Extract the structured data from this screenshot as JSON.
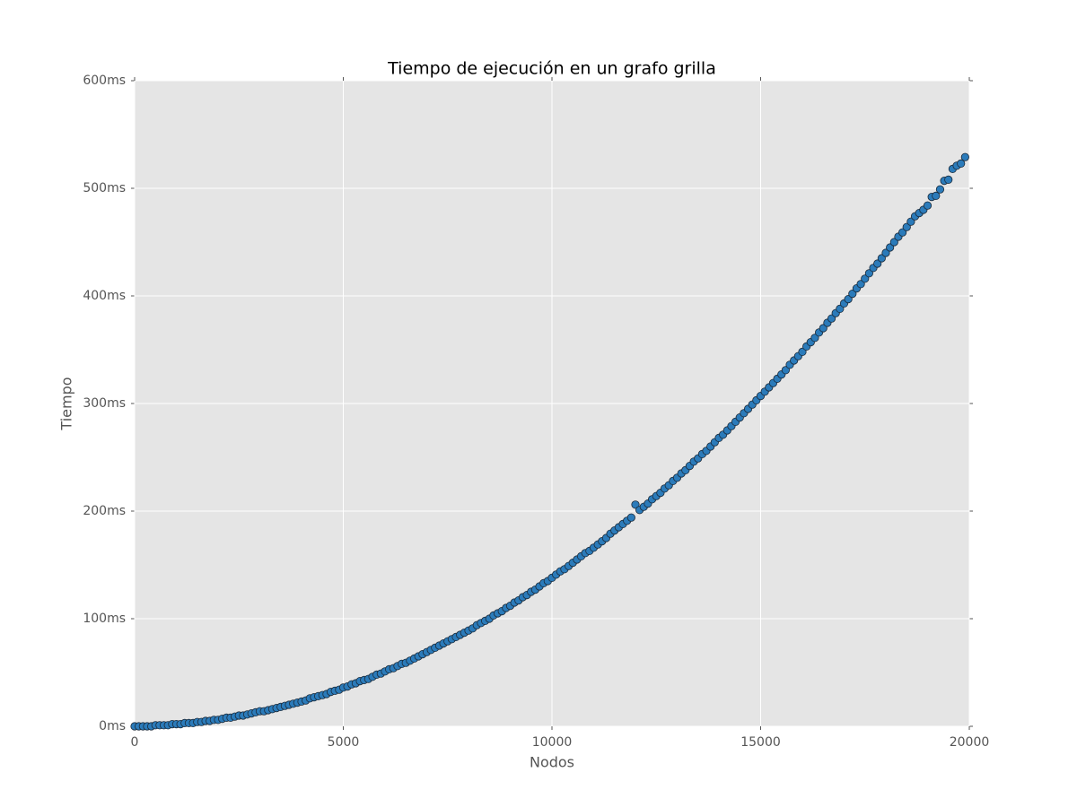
{
  "chart_data": {
    "type": "scatter",
    "title": "Tiempo de ejecución en un grafo grilla",
    "x_label": "Nodos",
    "y_label": "Tiempo",
    "x": [
      0,
      100,
      200,
      300,
      400,
      500,
      600,
      700,
      800,
      900,
      1000,
      1100,
      1200,
      1300,
      1400,
      1500,
      1600,
      1700,
      1800,
      1900,
      2000,
      2100,
      2200,
      2300,
      2400,
      2500,
      2600,
      2700,
      2800,
      2900,
      3000,
      3100,
      3200,
      3300,
      3400,
      3500,
      3600,
      3700,
      3800,
      3900,
      4000,
      4100,
      4200,
      4300,
      4400,
      4500,
      4600,
      4700,
      4800,
      4900,
      5000,
      5100,
      5200,
      5300,
      5400,
      5500,
      5600,
      5700,
      5800,
      5900,
      6000,
      6100,
      6200,
      6300,
      6400,
      6500,
      6600,
      6700,
      6800,
      6900,
      7000,
      7100,
      7200,
      7300,
      7400,
      7500,
      7600,
      7700,
      7800,
      7900,
      8000,
      8100,
      8200,
      8300,
      8400,
      8500,
      8600,
      8700,
      8800,
      8900,
      9000,
      9100,
      9200,
      9300,
      9400,
      9500,
      9600,
      9700,
      9800,
      9900,
      10000,
      10100,
      10200,
      10300,
      10400,
      10500,
      10600,
      10700,
      10800,
      10900,
      11000,
      11100,
      11200,
      11300,
      11400,
      11500,
      11600,
      11700,
      11800,
      11900,
      12000,
      12100,
      12200,
      12300,
      12400,
      12500,
      12600,
      12700,
      12800,
      12900,
      13000,
      13100,
      13200,
      13300,
      13400,
      13500,
      13600,
      13700,
      13800,
      13900,
      14000,
      14100,
      14200,
      14300,
      14400,
      14500,
      14600,
      14700,
      14800,
      14900,
      15000,
      15100,
      15200,
      15300,
      15400,
      15500,
      15600,
      15700,
      15800,
      15900,
      16000,
      16100,
      16200,
      16300,
      16400,
      16500,
      16600,
      16700,
      16800,
      16900,
      17000,
      17100,
      17200,
      17300,
      17400,
      17500,
      17600,
      17700,
      17800,
      17900,
      18000,
      18100,
      18200,
      18300,
      18400,
      18500,
      18600,
      18700,
      18800,
      18900,
      19000,
      19100,
      19200,
      19300,
      19400,
      19500,
      19600,
      19700,
      19800,
      19900
    ],
    "series": [
      {
        "color": "#2b7bba",
        "values": [
          0,
          0,
          0,
          0,
          0,
          1,
          1,
          1,
          1,
          2,
          2,
          2,
          3,
          3,
          3,
          4,
          4,
          5,
          5,
          6,
          6,
          7,
          8,
          8,
          9,
          10,
          10,
          11,
          12,
          13,
          14,
          14,
          15,
          16,
          17,
          18,
          19,
          20,
          21,
          22,
          23,
          24,
          26,
          27,
          28,
          29,
          30,
          32,
          33,
          34,
          36,
          37,
          39,
          40,
          42,
          43,
          44,
          46,
          48,
          49,
          51,
          53,
          54,
          56,
          58,
          59,
          61,
          63,
          65,
          67,
          69,
          71,
          73,
          75,
          77,
          79,
          81,
          83,
          85,
          87,
          89,
          91,
          94,
          96,
          98,
          100,
          103,
          105,
          107,
          110,
          112,
          115,
          117,
          120,
          122,
          125,
          127,
          130,
          133,
          135,
          138,
          141,
          144,
          146,
          149,
          152,
          155,
          158,
          161,
          163,
          166,
          169,
          172,
          175,
          179,
          182,
          185,
          188,
          191,
          194,
          206,
          201,
          204,
          207,
          211,
          214,
          217,
          221,
          224,
          228,
          231,
          235,
          238,
          242,
          246,
          249,
          253,
          256,
          260,
          264,
          268,
          271,
          275,
          279,
          283,
          287,
          291,
          295,
          299,
          303,
          307,
          311,
          315,
          319,
          323,
          327,
          331,
          336,
          340,
          344,
          348,
          353,
          357,
          361,
          366,
          370,
          375,
          379,
          384,
          388,
          393,
          397,
          402,
          407,
          411,
          416,
          421,
          426,
          430,
          435,
          440,
          445,
          450,
          455,
          459,
          464,
          469,
          474,
          477,
          480,
          484,
          492,
          493,
          499,
          507,
          508,
          518,
          521,
          523,
          529
        ]
      }
    ],
    "xlim": [
      0,
      20000
    ],
    "ylim": [
      0,
      600
    ],
    "xticks": [
      0,
      5000,
      10000,
      15000,
      20000
    ],
    "yticks": [
      {
        "value": 0,
        "label": "0ms"
      },
      {
        "value": 100,
        "label": "100ms"
      },
      {
        "value": 200,
        "label": "200ms"
      },
      {
        "value": 300,
        "label": "300ms"
      },
      {
        "value": 400,
        "label": "400ms"
      },
      {
        "value": 500,
        "label": "500ms"
      },
      {
        "value": 600,
        "label": "600ms"
      }
    ],
    "grid": true
  }
}
